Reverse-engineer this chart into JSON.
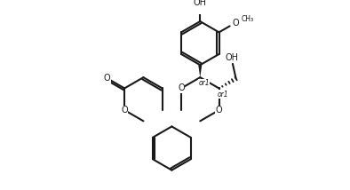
{
  "bg_color": "#ffffff",
  "line_color": "#1a1a1a",
  "lw": 1.5,
  "fs": 7.0,
  "fs_or1": 5.5,
  "xlim": [
    0,
    10
  ],
  "ylim": [
    0,
    5.4
  ]
}
